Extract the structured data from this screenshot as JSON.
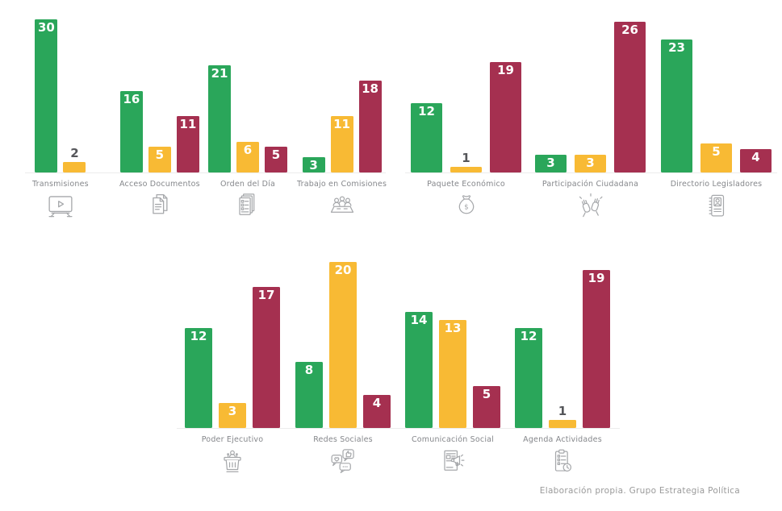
{
  "footer": {
    "credit": "Elaboración propia. Grupo Estrategia Política"
  },
  "palette": {
    "green": "#2aa65a",
    "amber": "#f8ba34",
    "maroon": "#a53050",
    "value_outside_text": "#55565a",
    "value_inside_text": "#ffffff",
    "category_label_text": "#85878b",
    "icon_gray": "#a6a8ab",
    "axis_line": "#ececec",
    "footer_text": "#9a9a9a"
  },
  "chart_data": [
    {
      "type": "bar",
      "title": "",
      "ylim": [
        0,
        30
      ],
      "grid": false,
      "legend": "none",
      "series_colors": [
        "green",
        "amber",
        "maroon"
      ],
      "groups": [
        {
          "label": "Transmisiones",
          "icon": "tv-play-icon",
          "values": [
            30,
            2
          ]
        },
        {
          "label": "Acceso Documentos",
          "icon": "documents-icon",
          "values": [
            16,
            5,
            11
          ]
        },
        {
          "label": "Orden del Día",
          "icon": "document-stack-icon",
          "values": [
            21,
            6,
            5
          ]
        },
        {
          "label": "Trabajo en Comisiones",
          "icon": "committee-meeting-icon",
          "values": [
            3,
            11,
            18
          ]
        }
      ]
    },
    {
      "type": "bar",
      "title": "",
      "ylim": [
        0,
        26
      ],
      "grid": false,
      "legend": "none",
      "series_colors": [
        "green",
        "amber",
        "maroon"
      ],
      "groups": [
        {
          "label": "Paquete Económico",
          "icon": "money-bag-icon",
          "values": [
            12,
            1,
            19
          ]
        },
        {
          "label": "Participación Ciudadana",
          "icon": "raised-hands-icon",
          "values": [
            3,
            3,
            26
          ]
        },
        {
          "label": "Directorio Legisladores",
          "icon": "contact-book-icon",
          "values": [
            23,
            5,
            4
          ]
        }
      ]
    },
    {
      "type": "bar",
      "title": "",
      "ylim": [
        0,
        20
      ],
      "grid": false,
      "legend": "none",
      "series_colors": [
        "green",
        "amber",
        "maroon"
      ],
      "groups": [
        {
          "label": "Poder Ejecutivo",
          "icon": "podium-speaker-icon",
          "values": [
            12,
            3,
            17
          ]
        },
        {
          "label": "Redes Sociales",
          "icon": "chat-bubbles-icon",
          "values": [
            8,
            20,
            4
          ]
        },
        {
          "label": "Comunicación Social",
          "icon": "news-megaphone-icon",
          "values": [
            14,
            13,
            5
          ]
        },
        {
          "label": "Agenda Actividades",
          "icon": "clipboard-clock-icon",
          "values": [
            12,
            1,
            19
          ]
        }
      ]
    }
  ]
}
